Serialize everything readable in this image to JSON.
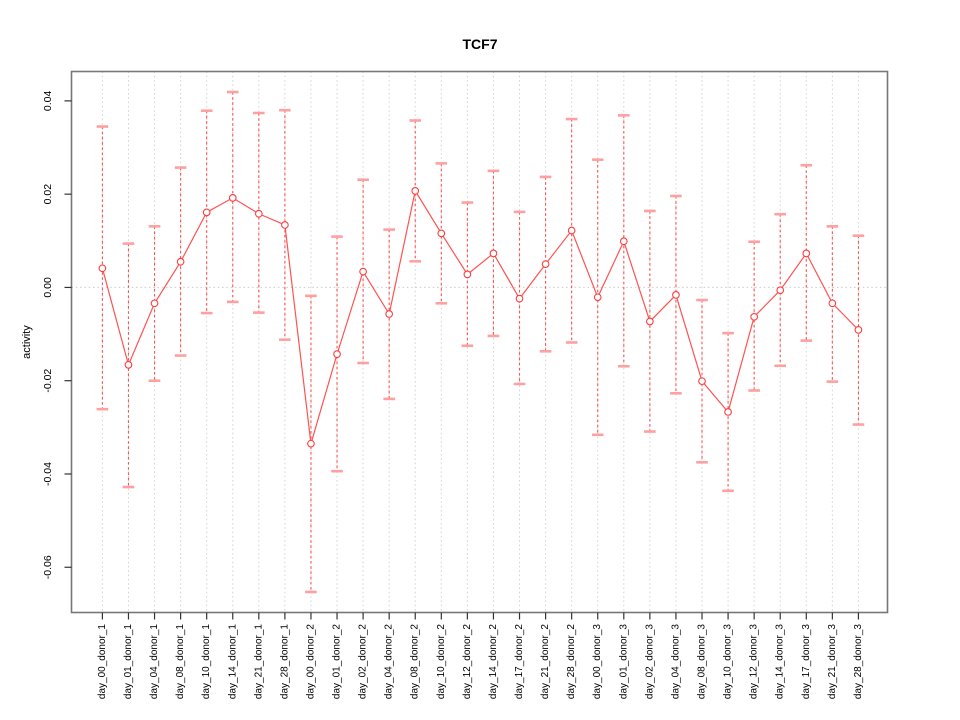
{
  "page": {
    "background": "#ffffff"
  },
  "chart_data": {
    "type": "line",
    "title": "TCF7",
    "xlabel": "",
    "ylabel": "activity",
    "legend_position": "none",
    "categories": [
      "day_00_donor_1",
      "day_01_donor_1",
      "day_04_donor_1",
      "day_08_donor_1",
      "day_10_donor_1",
      "day_14_donor_1",
      "day_21_donor_1",
      "day_28_donor_1",
      "day_00_donor_2",
      "day_01_donor_2",
      "day_02_donor_2",
      "day_04_donor_2",
      "day_08_donor_2",
      "day_10_donor_2",
      "day_12_donor_2",
      "day_14_donor_2",
      "day_17_donor_2",
      "day_21_donor_2",
      "day_28_donor_2",
      "day_00_donor_3",
      "day_01_donor_3",
      "day_02_donor_3",
      "day_04_donor_3",
      "day_08_donor_3",
      "day_10_donor_3",
      "day_12_donor_3",
      "day_14_donor_3",
      "day_17_donor_3",
      "day_21_donor_3",
      "day_28_donor_3"
    ],
    "series": [
      {
        "name": "TCF7 activity",
        "marker": "open-circle",
        "values": [
          0.0041,
          -0.0166,
          -0.0034,
          0.0055,
          0.0161,
          0.0192,
          0.0158,
          0.0134,
          -0.0335,
          -0.0143,
          0.0034,
          -0.0057,
          0.0207,
          0.0116,
          0.0028,
          0.0073,
          -0.0024,
          0.005,
          0.0122,
          -0.0021,
          0.0099,
          -0.0073,
          -0.0016,
          -0.0201,
          -0.0267,
          -0.0063,
          -0.0006,
          0.0073,
          -0.0034,
          -0.0091
        ],
        "error_upper": [
          0.0345,
          0.0094,
          0.0131,
          0.0257,
          0.0379,
          0.0419,
          0.0374,
          0.038,
          -0.0018,
          0.0109,
          0.0231,
          0.0124,
          0.0358,
          0.0266,
          0.0182,
          0.025,
          0.0162,
          0.0237,
          0.0361,
          0.0274,
          0.0369,
          0.0164,
          0.0196,
          -0.0027,
          -0.0098,
          0.0098,
          0.0157,
          0.0262,
          0.0131,
          0.0111
        ],
        "error_lower": [
          -0.0261,
          -0.0428,
          -0.02,
          -0.0146,
          -0.0055,
          -0.0031,
          -0.0054,
          -0.0112,
          -0.0653,
          -0.0394,
          -0.0162,
          -0.0239,
          0.0056,
          -0.0034,
          -0.0125,
          -0.0104,
          -0.0207,
          -0.0137,
          -0.0118,
          -0.0316,
          -0.0169,
          -0.0309,
          -0.0227,
          -0.0375,
          -0.0436,
          -0.0221,
          -0.0168,
          -0.0114,
          -0.0202,
          -0.0294
        ]
      }
    ],
    "ylim": [
      -0.0697,
      0.0463
    ],
    "yticks": [
      0.04,
      0.02,
      0.0,
      -0.02,
      -0.04,
      -0.06
    ],
    "ytick_labels": [
      "0.04",
      "0.02",
      "0.00",
      "-0.02",
      "-0.04",
      "-0.06"
    ],
    "grid": {
      "vertical_dotted": true,
      "horizontal_zero_dotted": true
    },
    "colors": {
      "series_line": "#ff5252",
      "marker_stroke": "#ff3d3d",
      "error_bar": "#ff5252",
      "error_cap": "#ffa0a0",
      "grid_line": "#d2d2d2",
      "zero_line": "#cccccc",
      "frame": "#777777",
      "tick": "#333333",
      "text": "#000000"
    }
  }
}
